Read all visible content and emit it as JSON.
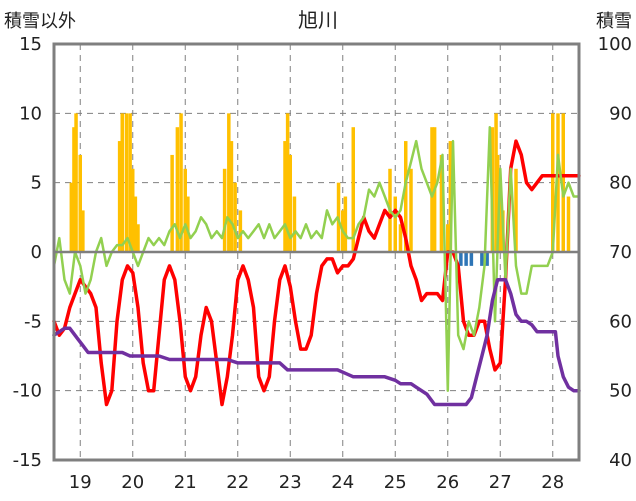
{
  "chart_data": {
    "type": "bar+line",
    "title": "旭川",
    "y_left_label": "積雪以外",
    "y_right_label": "積雪",
    "y_left_ticks": [
      "15",
      "10",
      "5",
      "0",
      "-5",
      "-10",
      "-15"
    ],
    "y_right_ticks": [
      "100",
      "90",
      "80",
      "70",
      "60",
      "50",
      "40"
    ],
    "x_ticks": [
      "19",
      "20",
      "21",
      "22",
      "23",
      "24",
      "25",
      "26",
      "27",
      "28"
    ],
    "ylim_left": [
      -15,
      15
    ],
    "ylim_right": [
      40,
      100
    ],
    "xlim": [
      18.5,
      28.5
    ],
    "grid": "dashed",
    "colors": {
      "bars_positive": "#ffc000",
      "bars_negative": "#2e75b6",
      "red_line": "#ff0000",
      "green_line": "#92d050",
      "purple_line": "#7030a0",
      "frame": "#7f7f7f",
      "grid": "#808080"
    },
    "bars": {
      "x": [
        18.83,
        18.88,
        18.92,
        19.0,
        19.05,
        19.75,
        19.8,
        19.88,
        19.95,
        20.0,
        20.05,
        20.1,
        20.75,
        20.85,
        20.92,
        21.0,
        21.05,
        21.75,
        21.83,
        21.88,
        21.95,
        22.05,
        22.9,
        22.95,
        23.0,
        23.08,
        23.92,
        24.0,
        24.05,
        24.2,
        24.9,
        25.0,
        25.1,
        25.2,
        25.3,
        25.7,
        25.75,
        25.88,
        26.0,
        26.05,
        26.25,
        26.35,
        26.45,
        26.65,
        26.75,
        26.85,
        26.92,
        26.95,
        27.0,
        27.05,
        27.3,
        28.0,
        28.1,
        28.2,
        28.3
      ],
      "values": [
        5,
        9,
        10,
        7,
        3,
        8,
        10,
        10,
        10,
        6,
        4,
        2,
        7,
        9,
        10,
        6,
        4,
        6,
        10,
        8,
        5,
        3,
        8,
        10,
        7,
        4,
        5,
        3,
        4,
        9,
        6,
        4,
        2,
        8,
        6,
        9,
        9,
        7,
        2,
        8,
        -1,
        -1,
        -1,
        -1,
        -1,
        9,
        10,
        7,
        5,
        3,
        6,
        10,
        10,
        10,
        4
      ]
    },
    "series": [
      {
        "color": "#ff0000",
        "axis": "left",
        "x": [
          18.5,
          18.6,
          18.7,
          18.8,
          18.9,
          19.0,
          19.1,
          19.2,
          19.3,
          19.4,
          19.5,
          19.6,
          19.7,
          19.8,
          19.9,
          20.0,
          20.1,
          20.2,
          20.3,
          20.4,
          20.5,
          20.6,
          20.7,
          20.8,
          20.9,
          21.0,
          21.1,
          21.2,
          21.3,
          21.4,
          21.5,
          21.6,
          21.7,
          21.8,
          21.9,
          22.0,
          22.1,
          22.2,
          22.3,
          22.4,
          22.5,
          22.6,
          22.7,
          22.8,
          22.9,
          23.0,
          23.1,
          23.2,
          23.3,
          23.4,
          23.5,
          23.6,
          23.7,
          23.8,
          23.9,
          24.0,
          24.1,
          24.2,
          24.3,
          24.4,
          24.5,
          24.6,
          24.7,
          24.8,
          24.9,
          25.0,
          25.1,
          25.2,
          25.3,
          25.4,
          25.5,
          25.6,
          25.7,
          25.8,
          25.9,
          26.0,
          26.1,
          26.2,
          26.3,
          26.4,
          26.5,
          26.6,
          26.7,
          26.8,
          26.9,
          27.0,
          27.1,
          27.2,
          27.3,
          27.4,
          27.5,
          27.6,
          27.7,
          27.8,
          27.9,
          28.0,
          28.1,
          28.2,
          28.3,
          28.4,
          28.5
        ],
        "values": [
          -5,
          -6,
          -5.5,
          -4,
          -3,
          -2,
          -2.5,
          -3,
          -4,
          -8,
          -11,
          -10,
          -5,
          -2,
          -1,
          -1.5,
          -4,
          -8,
          -10,
          -10,
          -6,
          -2,
          -1,
          -2,
          -5,
          -9,
          -10,
          -9,
          -6,
          -4,
          -5,
          -8,
          -11,
          -9,
          -6,
          -2,
          -1,
          -2,
          -4,
          -9,
          -10,
          -9,
          -5,
          -2,
          -1,
          -2.5,
          -5,
          -7,
          -7,
          -6,
          -3,
          -1,
          -0.5,
          -0.5,
          -1.5,
          -1,
          -1,
          -0.5,
          1,
          2.5,
          1.5,
          1,
          2,
          3,
          2.5,
          3,
          2.5,
          1,
          -1,
          -2,
          -3.5,
          -3,
          -3,
          -3,
          -3.5,
          0,
          0,
          -1,
          -5,
          -6,
          -6,
          -5,
          -5,
          -7,
          -8.5,
          -8,
          -2,
          6,
          8,
          7,
          5,
          4.5,
          5,
          5.5,
          5.5,
          5.5,
          5.5,
          5.5,
          5.5,
          5.5,
          5.5
        ]
      },
      {
        "color": "#92d050",
        "axis": "left",
        "x": [
          18.5,
          18.6,
          18.7,
          18.8,
          18.9,
          19.0,
          19.1,
          19.2,
          19.3,
          19.4,
          19.5,
          19.6,
          19.7,
          19.8,
          19.9,
          20.0,
          20.1,
          20.2,
          20.3,
          20.4,
          20.5,
          20.6,
          20.7,
          20.8,
          20.9,
          21.0,
          21.1,
          21.2,
          21.3,
          21.4,
          21.5,
          21.6,
          21.7,
          21.8,
          21.9,
          22.0,
          22.1,
          22.2,
          22.3,
          22.4,
          22.5,
          22.6,
          22.7,
          22.8,
          22.9,
          23.0,
          23.1,
          23.2,
          23.3,
          23.4,
          23.5,
          23.6,
          23.7,
          23.8,
          23.9,
          24.0,
          24.1,
          24.2,
          24.3,
          24.4,
          24.5,
          24.6,
          24.7,
          24.8,
          24.9,
          25.0,
          25.1,
          25.2,
          25.3,
          25.4,
          25.5,
          25.6,
          25.7,
          25.8,
          25.9,
          26.0,
          26.1,
          26.2,
          26.3,
          26.4,
          26.5,
          26.6,
          26.7,
          26.8,
          26.9,
          27.0,
          27.1,
          27.2,
          27.3,
          27.4,
          27.5,
          27.6,
          27.7,
          27.8,
          27.9,
          28.0,
          28.1,
          28.2,
          28.3,
          28.4,
          28.5
        ],
        "values": [
          -1,
          1,
          -2,
          -3,
          0,
          -1,
          -3,
          -2,
          0,
          1,
          -1,
          0,
          0.5,
          0.5,
          1,
          0,
          -1,
          0,
          1,
          0.5,
          1,
          0.5,
          1.5,
          2,
          1,
          2,
          1,
          1.5,
          2.5,
          2,
          1,
          1.5,
          1,
          2.5,
          2,
          1,
          1.5,
          1,
          1.5,
          2,
          1,
          2,
          1,
          1.5,
          2,
          1,
          1.5,
          1,
          2,
          1,
          1.5,
          1,
          3,
          2,
          2.5,
          1.5,
          1,
          1,
          2,
          2.5,
          4.5,
          4,
          5,
          4,
          3,
          2.5,
          3,
          5,
          6.5,
          8,
          6,
          5,
          4,
          5,
          7,
          -10,
          8,
          -6,
          -7,
          -5,
          -6,
          -4,
          -1,
          9,
          -5,
          6,
          -2,
          6,
          -1,
          -3,
          -3,
          -1,
          -1,
          -1,
          -1,
          0,
          7,
          4,
          5,
          4,
          4
        ]
      },
      {
        "color": "#7030a0",
        "axis": "right",
        "x": [
          18.5,
          18.7,
          18.8,
          18.95,
          19.05,
          19.15,
          19.25,
          19.4,
          19.6,
          19.8,
          19.95,
          20.1,
          20.3,
          20.5,
          20.7,
          20.8,
          21.0,
          21.2,
          21.4,
          21.6,
          21.8,
          22.0,
          22.2,
          22.4,
          22.6,
          22.8,
          22.95,
          23.05,
          23.3,
          23.5,
          23.7,
          23.9,
          24.05,
          24.2,
          24.4,
          24.6,
          24.8,
          25.0,
          25.1,
          25.2,
          25.3,
          25.4,
          25.6,
          25.75,
          25.85,
          25.95,
          26.05,
          26.15,
          26.25,
          26.35,
          26.45,
          26.55,
          26.65,
          26.75,
          26.85,
          26.95,
          27.1,
          27.2,
          27.3,
          27.4,
          27.5,
          27.6,
          27.7,
          27.8,
          27.9,
          28.0,
          28.05,
          28.1,
          28.2,
          28.3,
          28.4,
          28.5
        ],
        "values": [
          58,
          59,
          59,
          57.5,
          56.5,
          55.5,
          55.5,
          55.5,
          55.5,
          55.5,
          55,
          55,
          55,
          55,
          54.5,
          54.5,
          54.5,
          54.5,
          54.5,
          54.5,
          54.5,
          54,
          54,
          54,
          54,
          54,
          53,
          53,
          53,
          53,
          53,
          53,
          52.5,
          52,
          52,
          52,
          52,
          51.5,
          51,
          51,
          51,
          50.5,
          49.5,
          48,
          48,
          48,
          48,
          48,
          48,
          48,
          49,
          52,
          55,
          58,
          63,
          66,
          66,
          64,
          61,
          60,
          60,
          59.5,
          58.5,
          58.5,
          58.5,
          58.5,
          58.5,
          55,
          52,
          50.5,
          50,
          50
        ]
      }
    ]
  }
}
